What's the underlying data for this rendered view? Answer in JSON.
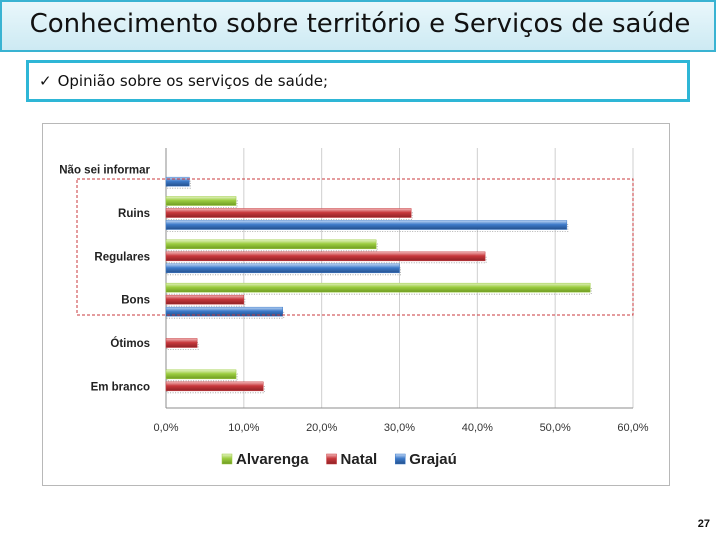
{
  "slide": {
    "title": "Conhecimento sobre território e Serviços de saúde",
    "subtitle_check": "✓",
    "subtitle": "Opinião sobre os serviços de saúde;",
    "page_number": "27"
  },
  "chart_data": {
    "type": "bar",
    "orientation": "horizontal",
    "categories": [
      "Não sei informar",
      "Ruins",
      "Regulares",
      "Bons",
      "Ótimos",
      "Em branco"
    ],
    "series": [
      {
        "name": "Alvarenga",
        "color": "#9bcc3f",
        "values": [
          0,
          9.0,
          27.0,
          54.5,
          0,
          9.0
        ]
      },
      {
        "name": "Natal",
        "color": "#c8383c",
        "values": [
          0,
          31.5,
          41.0,
          10.0,
          4.0,
          12.5
        ]
      },
      {
        "name": "Grajaú",
        "color": "#3d7ac9",
        "values": [
          3.0,
          51.5,
          30.0,
          15.0,
          0,
          0
        ]
      }
    ],
    "x_ticks": [
      "0,0%",
      "10,0%",
      "20,0%",
      "30,0%",
      "40,0%",
      "50,0%",
      "60,0%"
    ],
    "xlim": [
      0,
      60
    ],
    "grid": true,
    "legend_position": "bottom",
    "annotation": "dashed red box around Ruins, Regulares and Bons"
  }
}
